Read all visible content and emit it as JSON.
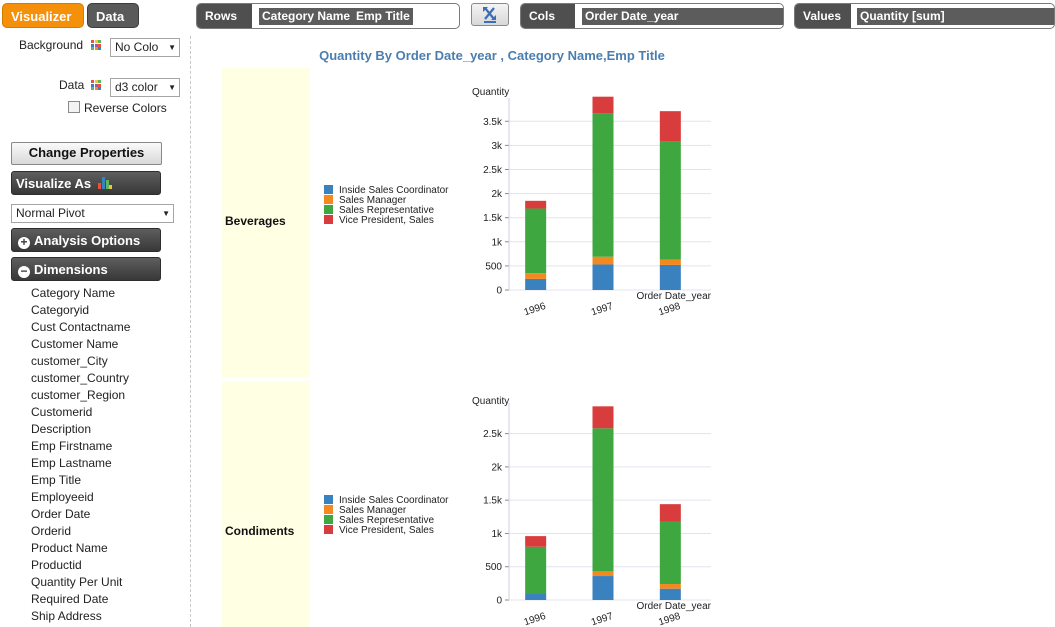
{
  "tabs": {
    "visualizer": "Visualizer",
    "data": "Data"
  },
  "shelves": {
    "rows": {
      "label": "Rows",
      "pills": [
        "Category Name",
        "Emp Title"
      ]
    },
    "cols": {
      "label": "Cols",
      "pills": [
        "Order Date_year"
      ]
    },
    "values": {
      "label": "Values",
      "pills": [
        "Quantity [sum]"
      ]
    }
  },
  "sidebar": {
    "background_label": "Background",
    "background_value": "No Colo",
    "data_label": "Data",
    "data_value": "d3 color",
    "reverse_colors_label": "Reverse Colors",
    "change_properties": "Change Properties",
    "visualize_as": "Visualize As",
    "visualize_as_value": "Normal Pivot",
    "analysis_options": "Analysis Options",
    "dimensions": "Dimensions",
    "dimension_items": [
      "Category Name",
      "Categoryid",
      "Cust Contactname",
      "Customer Name",
      "customer_City",
      "customer_Country",
      "customer_Region",
      "Customerid",
      "Description",
      "Emp Firstname",
      "Emp Lastname",
      "Emp Title",
      "Employeeid",
      "Order Date",
      "Orderid",
      "Product Name",
      "Productid",
      "Quantity Per Unit",
      "Required Date",
      "Ship Address"
    ]
  },
  "main": {
    "title": "Quantity By Order Date_year , Category Name,Emp Title",
    "row_headers": [
      "Beverages",
      "Condiments"
    ]
  },
  "colors": {
    "accent_tab": "#f4900a",
    "title_blue": "#4a7eb0",
    "row_header_bg": "#ffffe4",
    "series": [
      "#3a81c0",
      "#f48a1f",
      "#3fa73f",
      "#d93c3c"
    ]
  },
  "chart_data": [
    {
      "type": "bar",
      "stacked": true,
      "row": "Beverages",
      "title": "",
      "xlabel": "Order Date_year",
      "ylabel": "Quantity",
      "categories": [
        "1996",
        "1997",
        "1998"
      ],
      "ylim": [
        0,
        3900
      ],
      "yticks": [
        0,
        500,
        1000,
        1500,
        2000,
        2500,
        3000,
        3500
      ],
      "ytick_labels": [
        "0",
        "500",
        "1k",
        "1.5k",
        "2k",
        "2.5k",
        "3k",
        "3.5k"
      ],
      "series": [
        {
          "name": "Inside Sales Coordinator",
          "values": [
            230,
            530,
            520
          ]
        },
        {
          "name": "Sales Manager",
          "values": [
            120,
            160,
            110
          ]
        },
        {
          "name": "Sales Representative",
          "values": [
            1340,
            2980,
            2460
          ]
        },
        {
          "name": "Vice President, Sales",
          "values": [
            160,
            340,
            620
          ]
        }
      ]
    },
    {
      "type": "bar",
      "stacked": true,
      "row": "Condiments",
      "title": "",
      "xlabel": "Order Date_year",
      "ylabel": "Quantity",
      "categories": [
        "1996",
        "1997",
        "1998"
      ],
      "ylim": [
        0,
        2900
      ],
      "yticks": [
        0,
        500,
        1000,
        1500,
        2000,
        2500
      ],
      "ytick_labels": [
        "0",
        "500",
        "1k",
        "1.5k",
        "2k",
        "2.5k"
      ],
      "series": [
        {
          "name": "Inside Sales Coordinator",
          "values": [
            90,
            360,
            170
          ]
        },
        {
          "name": "Sales Manager",
          "values": [
            0,
            70,
            70
          ]
        },
        {
          "name": "Sales Representative",
          "values": [
            710,
            2150,
            940
          ]
        },
        {
          "name": "Vice President, Sales",
          "values": [
            160,
            330,
            260
          ]
        }
      ]
    }
  ]
}
